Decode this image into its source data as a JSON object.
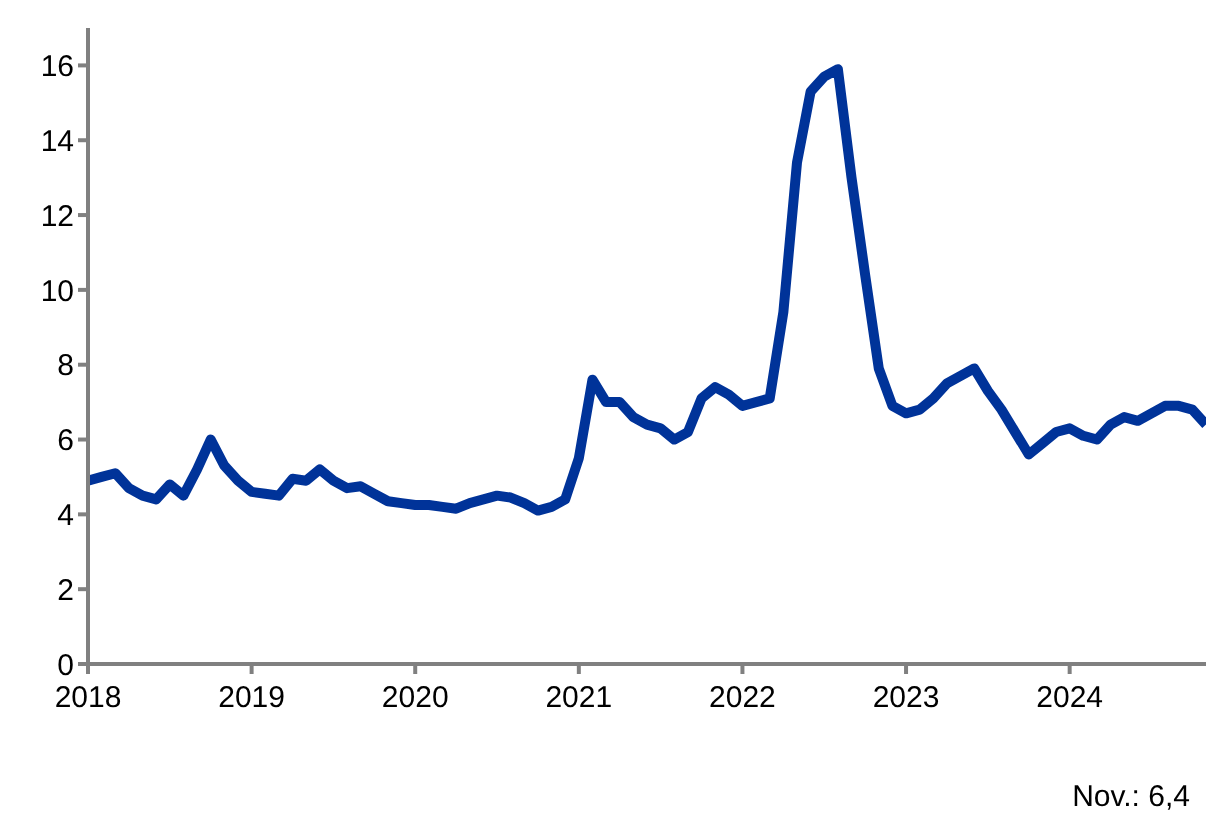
{
  "chart_data": {
    "type": "line",
    "x": [
      "2018-01",
      "2018-02",
      "2018-03",
      "2018-04",
      "2018-05",
      "2018-06",
      "2018-07",
      "2018-08",
      "2018-09",
      "2018-10",
      "2018-11",
      "2018-12",
      "2019-01",
      "2019-02",
      "2019-03",
      "2019-04",
      "2019-05",
      "2019-06",
      "2019-07",
      "2019-08",
      "2019-09",
      "2019-10",
      "2019-11",
      "2019-12",
      "2020-01",
      "2020-02",
      "2020-03",
      "2020-04",
      "2020-05",
      "2020-06",
      "2020-07",
      "2020-08",
      "2020-09",
      "2020-10",
      "2020-11",
      "2020-12",
      "2021-01",
      "2021-02",
      "2021-03",
      "2021-04",
      "2021-05",
      "2021-06",
      "2021-07",
      "2021-08",
      "2021-09",
      "2021-10",
      "2021-11",
      "2021-12",
      "2022-01",
      "2022-02",
      "2022-03",
      "2022-04",
      "2022-05",
      "2022-06",
      "2022-07",
      "2022-08",
      "2022-09",
      "2022-10",
      "2022-11",
      "2022-12",
      "2023-01",
      "2023-02",
      "2023-03",
      "2023-04",
      "2023-05",
      "2023-06",
      "2023-07",
      "2023-08",
      "2023-09",
      "2023-10",
      "2023-11",
      "2023-12",
      "2024-01",
      "2024-02",
      "2024-03",
      "2024-04",
      "2024-05",
      "2024-06",
      "2024-07",
      "2024-08",
      "2024-09",
      "2024-10",
      "2024-11"
    ],
    "series": [
      {
        "color": "#003399",
        "values": [
          4.9,
          5.0,
          5.1,
          4.7,
          4.5,
          4.4,
          4.8,
          4.5,
          5.2,
          6.0,
          5.3,
          4.9,
          4.6,
          4.55,
          4.5,
          4.95,
          4.9,
          5.2,
          4.9,
          4.7,
          4.75,
          4.55,
          4.35,
          4.3,
          4.25,
          4.25,
          4.2,
          4.15,
          4.3,
          4.4,
          4.5,
          4.45,
          4.3,
          4.1,
          4.2,
          4.4,
          5.5,
          7.6,
          7.0,
          7.0,
          6.6,
          6.4,
          6.3,
          6.0,
          6.2,
          7.1,
          7.4,
          7.2,
          6.9,
          7.0,
          7.1,
          9.4,
          13.4,
          15.3,
          15.7,
          15.9,
          13.0,
          10.4,
          7.9,
          6.9,
          6.7,
          6.8,
          7.1,
          7.5,
          7.7,
          7.9,
          7.3,
          6.8,
          6.2,
          5.6,
          5.9,
          6.2,
          6.3,
          6.1,
          6.0,
          6.4,
          6.6,
          6.5,
          6.7,
          6.9,
          6.9,
          6.8,
          6.4
        ]
      }
    ],
    "xlim": [
      "2018-01",
      "2024-11"
    ],
    "xticks": [
      {
        "value": "2018",
        "label": "2018"
      },
      {
        "value": "2019",
        "label": "2019"
      },
      {
        "value": "2020",
        "label": "2020"
      },
      {
        "value": "2021",
        "label": "2021"
      },
      {
        "value": "2022",
        "label": "2022"
      },
      {
        "value": "2023",
        "label": "2023"
      },
      {
        "value": "2024",
        "label": "2024"
      }
    ],
    "ylim": [
      0,
      17
    ],
    "yticks": [
      0,
      2,
      4,
      6,
      8,
      10,
      12,
      14,
      16
    ],
    "grid": false,
    "marker": "none",
    "line_style": "solid",
    "annotations": [
      "Nov.: 6,4"
    ]
  }
}
